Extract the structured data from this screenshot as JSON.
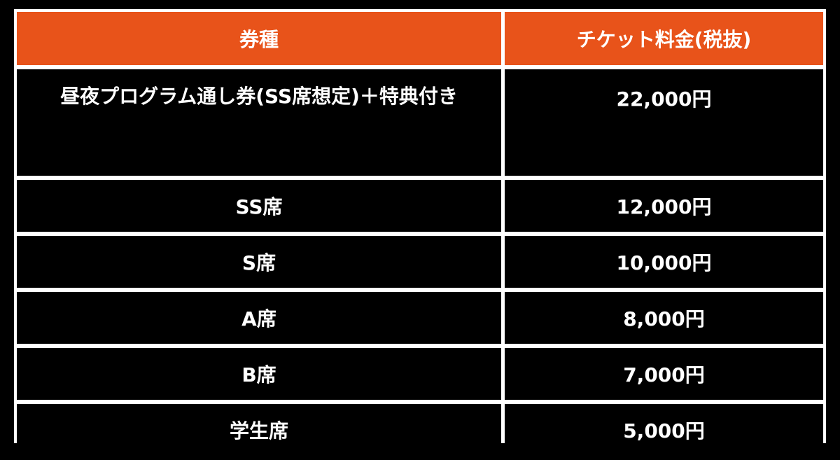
{
  "table": {
    "headers": [
      "券種",
      "チケット料金(税抜)"
    ],
    "rows": [
      {
        "type": "昼夜プログラム通し券(SS席想定)＋特典付き",
        "price": "22,000円"
      },
      {
        "type": "SS席",
        "price": "12,000円"
      },
      {
        "type": "S席",
        "price": "10,000円"
      },
      {
        "type": "A席",
        "price": "8,000円"
      },
      {
        "type": "B席",
        "price": "7,000円"
      },
      {
        "type": "学生席",
        "price": "5,000円"
      }
    ]
  },
  "colors": {
    "header_bg": "#E8531A",
    "cell_bg": "#000000",
    "border": "#FFFFFF",
    "text": "#FFFFFF"
  }
}
